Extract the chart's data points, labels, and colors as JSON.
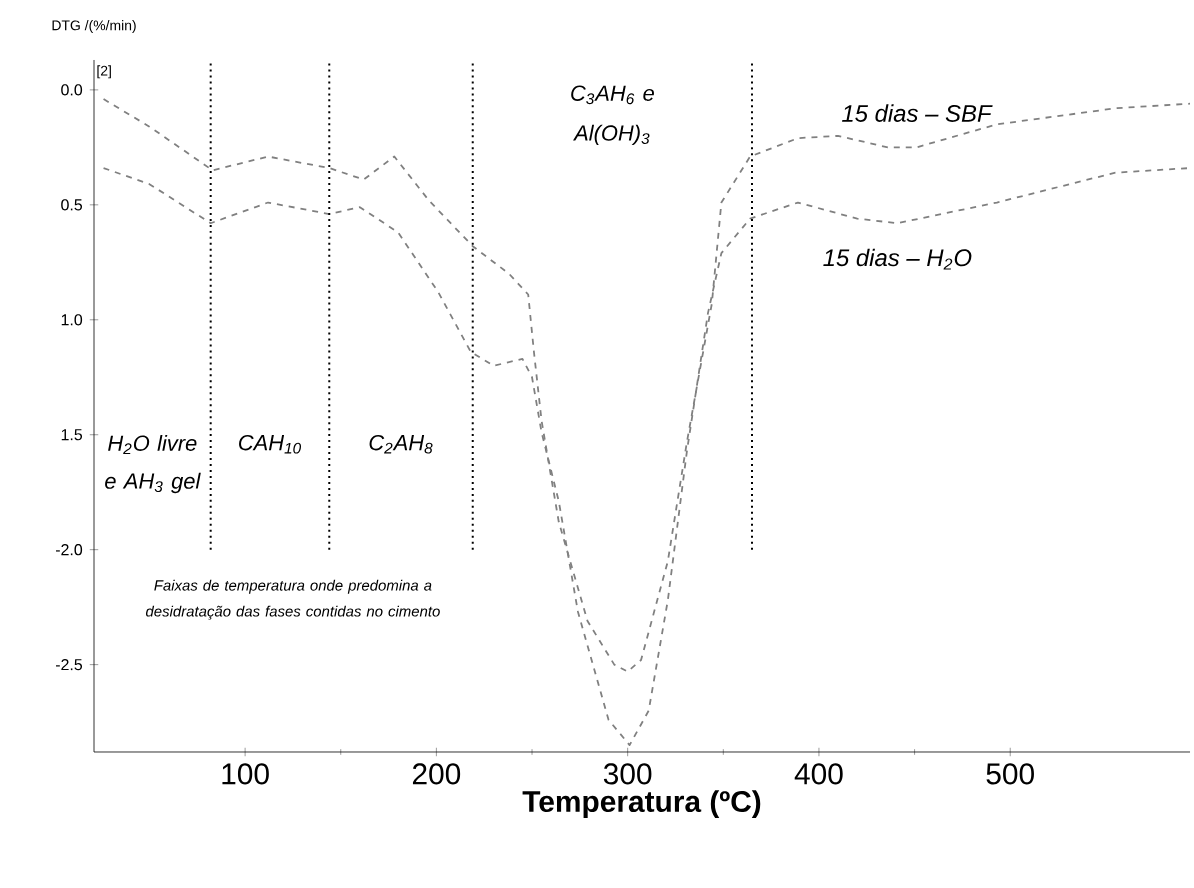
{
  "chart_data": {
    "type": "line",
    "xlabel": "Temperatura (ºC)",
    "ylabel": "DTG /(%/min)",
    "xlim": [
      21,
      594
    ],
    "ylim": [
      -2.88,
      0.13
    ],
    "xticks": [
      100,
      200,
      300,
      400,
      500
    ],
    "yticks": [
      {
        "value": 0,
        "label": "0.0"
      },
      {
        "value": -0.5,
        "label": "0.5"
      },
      {
        "value": -1.0,
        "label": "1.0"
      },
      {
        "value": -1.5,
        "label": "1.5"
      },
      {
        "value": -2.0,
        "label": "-2.0"
      },
      {
        "value": -2.5,
        "label": "-2.5"
      }
    ],
    "grid": false,
    "legend": false,
    "marker": "none",
    "series": [
      {
        "name": "15 dias – SBF",
        "color": "#808080",
        "line_style": "dashed",
        "x": [
          26,
          50,
          83,
          112,
          144,
          162,
          178,
          196,
          219,
          238,
          248,
          251,
          255,
          264,
          279,
          293,
          300,
          307,
          321,
          331,
          344,
          349,
          352,
          364,
          389,
          410,
          436,
          451,
          493,
          555,
          594
        ],
        "values": [
          -0.04,
          -0.16,
          -0.35,
          -0.29,
          -0.34,
          -0.39,
          -0.29,
          -0.48,
          -0.68,
          -0.8,
          -0.89,
          -1.14,
          -1.44,
          -1.88,
          -2.31,
          -2.5,
          -2.53,
          -2.48,
          -2.05,
          -1.53,
          -0.93,
          -0.49,
          -0.45,
          -0.29,
          -0.21,
          -0.2,
          -0.25,
          -0.25,
          -0.15,
          -0.08,
          -0.06
        ]
      },
      {
        "name": "15 dias – H$_{2}$O",
        "color": "#808080",
        "line_style": "dashed",
        "x": [
          26,
          50,
          82,
          112,
          144,
          160,
          180,
          201,
          218,
          230,
          245,
          250,
          255,
          264,
          274,
          290,
          301,
          311,
          321,
          331,
          342,
          349,
          364,
          389,
          420,
          441,
          493,
          555,
          594
        ],
        "values": [
          -0.34,
          -0.41,
          -0.58,
          -0.49,
          -0.54,
          -0.51,
          -0.62,
          -0.88,
          -1.14,
          -1.2,
          -1.17,
          -1.25,
          -1.49,
          -1.79,
          -2.27,
          -2.74,
          -2.85,
          -2.7,
          -2.22,
          -1.57,
          -0.97,
          -0.71,
          -0.56,
          -0.49,
          -0.56,
          -0.58,
          -0.49,
          -0.36,
          -0.34
        ]
      }
    ],
    "ref_lines": [
      {
        "axis": "x",
        "value": 82,
        "color": "#000000",
        "line_style": "dotted"
      },
      {
        "axis": "x",
        "value": 144,
        "color": "#000000",
        "line_style": "dotted"
      },
      {
        "axis": "x",
        "value": 219,
        "color": "#000000",
        "line_style": "dotted"
      },
      {
        "axis": "x",
        "value": 365,
        "color": "#000000",
        "line_style": "dotted"
      }
    ],
    "annotations": [
      "[2]",
      "H$_{2}$O livre e AH$_{3}$ gel",
      "CAH$_{10}$",
      "C$_{2}$AH$_{8}$",
      "C$_{3}$AH$_{6}$ e Al(OH)$_{3}$",
      "Faixas de temperatura onde predomina a desidratação das fases contidas no cimento"
    ]
  }
}
